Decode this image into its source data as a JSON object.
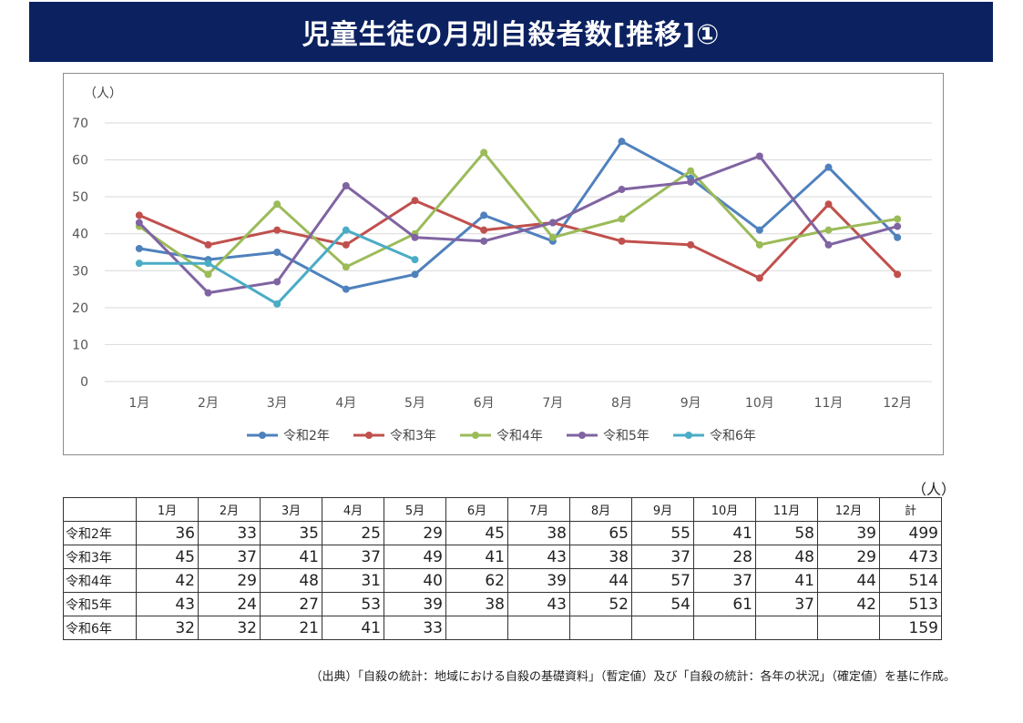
{
  "title": "児童生徒の月別自殺者数[推移]①",
  "chart_data": {
    "type": "line",
    "unit_label": "（人）",
    "categories": [
      "1月",
      "2月",
      "3月",
      "4月",
      "5月",
      "6月",
      "7月",
      "8月",
      "9月",
      "10月",
      "11月",
      "12月"
    ],
    "yticks": [
      0,
      10,
      20,
      30,
      40,
      50,
      60,
      70
    ],
    "ylim": [
      0,
      70
    ],
    "grid": true,
    "legend_position": "bottom",
    "series": [
      {
        "name": "令和2年",
        "color": "#4f81bd",
        "values": [
          36,
          33,
          35,
          25,
          29,
          45,
          38,
          65,
          55,
          41,
          58,
          39
        ]
      },
      {
        "name": "令和3年",
        "color": "#c0504d",
        "values": [
          45,
          37,
          41,
          37,
          49,
          41,
          43,
          38,
          37,
          28,
          48,
          29
        ]
      },
      {
        "name": "令和4年",
        "color": "#9bbb59",
        "values": [
          42,
          29,
          48,
          31,
          40,
          62,
          39,
          44,
          57,
          37,
          41,
          44
        ]
      },
      {
        "name": "令和5年",
        "color": "#8064a2",
        "values": [
          43,
          24,
          27,
          53,
          39,
          38,
          43,
          52,
          54,
          61,
          37,
          42
        ]
      },
      {
        "name": "令和6年",
        "color": "#4bacc6",
        "values": [
          32,
          32,
          21,
          41,
          33,
          null,
          null,
          null,
          null,
          null,
          null,
          null
        ]
      }
    ]
  },
  "table": {
    "unit_label": "（人）",
    "corner": "",
    "headers": [
      "1月",
      "2月",
      "3月",
      "4月",
      "5月",
      "6月",
      "7月",
      "8月",
      "9月",
      "10月",
      "11月",
      "12月",
      "計"
    ],
    "rows": [
      {
        "label": "令和2年",
        "cells": [
          "36",
          "33",
          "35",
          "25",
          "29",
          "45",
          "38",
          "65",
          "55",
          "41",
          "58",
          "39",
          "499"
        ]
      },
      {
        "label": "令和3年",
        "cells": [
          "45",
          "37",
          "41",
          "37",
          "49",
          "41",
          "43",
          "38",
          "37",
          "28",
          "48",
          "29",
          "473"
        ]
      },
      {
        "label": "令和4年",
        "cells": [
          "42",
          "29",
          "48",
          "31",
          "40",
          "62",
          "39",
          "44",
          "57",
          "37",
          "41",
          "44",
          "514"
        ]
      },
      {
        "label": "令和5年",
        "cells": [
          "43",
          "24",
          "27",
          "53",
          "39",
          "38",
          "43",
          "52",
          "54",
          "61",
          "37",
          "42",
          "513"
        ]
      },
      {
        "label": "令和6年",
        "cells": [
          "32",
          "32",
          "21",
          "41",
          "33",
          "",
          "",
          "",
          "",
          "",
          "",
          "",
          "159"
        ]
      }
    ]
  },
  "source_note": "（出典）「自殺の統計：地域における自殺の基礎資料」（暫定値）及び「自殺の統計：各年の状況」（確定値）を基に作成。"
}
